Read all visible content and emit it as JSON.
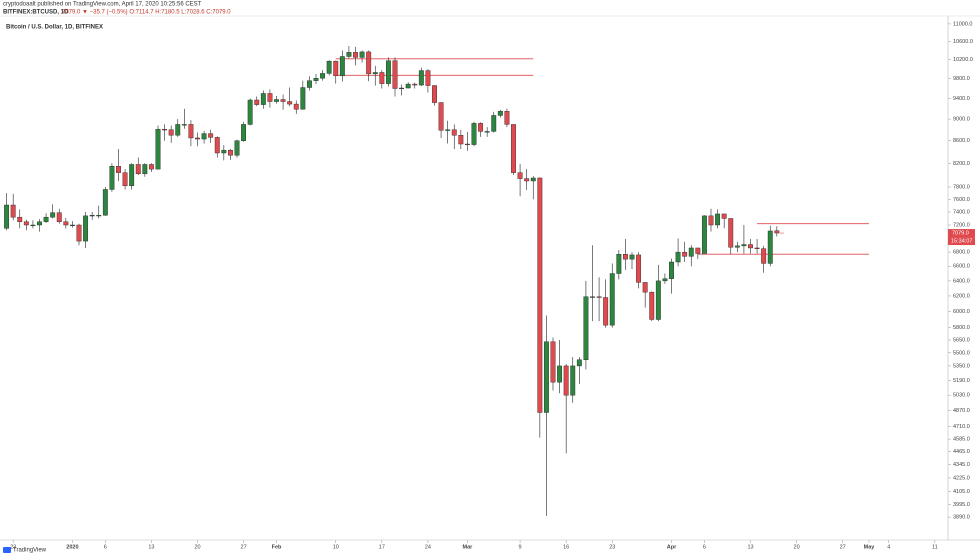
{
  "header": {
    "published": "cryptodoaalt published on TradingView.com, April 17, 2020 10:25:56 CEST",
    "symbol": "BITFINEX:BTCUSD, 1D",
    "quote": "7079.0 ▼ −35.7 (−0.5%) O:7114.7 H:7180.5 L:7028.6 C:7079.0"
  },
  "footer": {
    "brand": "TradingView"
  },
  "chart_data": {
    "type": "candlestick",
    "title": "Bitcoin / U.S. Dollar, 1D, BITFINEX",
    "x": [
      "2019-12-22",
      "2019-12-23",
      "2019-12-24",
      "2019-12-25",
      "2019-12-26",
      "2019-12-27",
      "2019-12-28",
      "2019-12-29",
      "2019-12-30",
      "2019-12-31",
      "2020-01-01",
      "2020-01-02",
      "2020-01-03",
      "2020-01-04",
      "2020-01-05",
      "2020-01-06",
      "2020-01-07",
      "2020-01-08",
      "2020-01-09",
      "2020-01-10",
      "2020-01-11",
      "2020-01-12",
      "2020-01-13",
      "2020-01-14",
      "2020-01-15",
      "2020-01-16",
      "2020-01-17",
      "2020-01-18",
      "2020-01-19",
      "2020-01-20",
      "2020-01-21",
      "2020-01-22",
      "2020-01-23",
      "2020-01-24",
      "2020-01-25",
      "2020-01-26",
      "2020-01-27",
      "2020-01-28",
      "2020-01-29",
      "2020-01-30",
      "2020-01-31",
      "2020-02-01",
      "2020-02-02",
      "2020-02-03",
      "2020-02-04",
      "2020-02-05",
      "2020-02-06",
      "2020-02-07",
      "2020-02-08",
      "2020-02-09",
      "2020-02-10",
      "2020-02-11",
      "2020-02-12",
      "2020-02-13",
      "2020-02-14",
      "2020-02-15",
      "2020-02-16",
      "2020-02-17",
      "2020-02-18",
      "2020-02-19",
      "2020-02-20",
      "2020-02-21",
      "2020-02-22",
      "2020-02-23",
      "2020-02-24",
      "2020-02-25",
      "2020-02-26",
      "2020-02-27",
      "2020-02-28",
      "2020-02-29",
      "2020-03-01",
      "2020-03-02",
      "2020-03-03",
      "2020-03-04",
      "2020-03-05",
      "2020-03-06",
      "2020-03-07",
      "2020-03-08",
      "2020-03-09",
      "2020-03-10",
      "2020-03-11",
      "2020-03-12",
      "2020-03-13",
      "2020-03-14",
      "2020-03-15",
      "2020-03-16",
      "2020-03-17",
      "2020-03-18",
      "2020-03-19",
      "2020-03-20",
      "2020-03-21",
      "2020-03-22",
      "2020-03-23",
      "2020-03-24",
      "2020-03-25",
      "2020-03-26",
      "2020-03-27",
      "2020-03-28",
      "2020-03-29",
      "2020-03-30",
      "2020-03-31",
      "2020-04-01",
      "2020-04-02",
      "2020-04-03",
      "2020-04-04",
      "2020-04-05",
      "2020-04-06",
      "2020-04-07",
      "2020-04-08",
      "2020-04-09",
      "2020-04-10",
      "2020-04-11",
      "2020-04-12",
      "2020-04-13",
      "2020-04-14",
      "2020-04-15",
      "2020-04-16",
      "2020-04-17"
    ],
    "open": [
      7150,
      7510,
      7320,
      7250,
      7200,
      7200,
      7250,
      7320,
      7390,
      7250,
      7200,
      7200,
      6960,
      7340,
      7350,
      7350,
      7760,
      8150,
      8040,
      7820,
      8180,
      8020,
      8180,
      8100,
      8810,
      8800,
      8700,
      8900,
      8900,
      8650,
      8630,
      8730,
      8660,
      8380,
      8430,
      8340,
      8600,
      8900,
      9370,
      9280,
      9500,
      9340,
      9380,
      9340,
      9290,
      9190,
      9620,
      9760,
      9810,
      9910,
      10170,
      9860,
      10270,
      10360,
      10250,
      10370,
      9900,
      9930,
      9700,
      10180,
      9600,
      9610,
      9690,
      9670,
      9970,
      9660,
      9320,
      8790,
      8800,
      8700,
      8540,
      8530,
      8920,
      8770,
      8770,
      9070,
      9150,
      8900,
      8040,
      7940,
      7900,
      7950,
      4850,
      5630,
      5170,
      5350,
      5030,
      5350,
      5420,
      6190,
      6190,
      6180,
      5830,
      6500,
      6770,
      6700,
      6760,
      6380,
      6250,
      5900,
      6400,
      6430,
      6660,
      6800,
      6740,
      6860,
      6780,
      7340,
      7200,
      7370,
      7300,
      6870,
      6890,
      6910,
      6860,
      6850,
      6640,
      7114.7
    ],
    "high": [
      7700,
      7690,
      7440,
      7280,
      7270,
      7290,
      7380,
      7520,
      7450,
      7310,
      7260,
      7220,
      7400,
      7400,
      7500,
      7800,
      8200,
      8450,
      8100,
      8200,
      8300,
      8200,
      8200,
      8880,
      8900,
      8880,
      9000,
      9200,
      8980,
      8750,
      8780,
      8800,
      8680,
      8520,
      8450,
      8620,
      8950,
      9400,
      9440,
      9560,
      9580,
      9450,
      9480,
      9620,
      9360,
      9760,
      9850,
      9900,
      9980,
      10190,
      10180,
      10400,
      10500,
      10480,
      10400,
      10400,
      10070,
      9980,
      10250,
      10250,
      9680,
      9730,
      9720,
      10030,
      10000,
      9670,
      9330,
      8970,
      8900,
      8800,
      8760,
      8950,
      8940,
      8850,
      9140,
      9180,
      9200,
      8900,
      8190,
      8100,
      7980,
      7960,
      5950,
      5680,
      5650,
      5370,
      5450,
      5450,
      6400,
      6900,
      6450,
      6420,
      6640,
      6830,
      6990,
      6800,
      6800,
      6380,
      6260,
      6620,
      6500,
      6710,
      7000,
      6950,
      6900,
      6860,
      7350,
      7450,
      7440,
      7370,
      7300,
      6950,
      7200,
      6990,
      6990,
      6890,
      7190,
      7180.5
    ],
    "low": [
      7120,
      7270,
      7150,
      7120,
      7150,
      7100,
      7230,
      7300,
      7220,
      7150,
      7160,
      6900,
      6860,
      7280,
      7300,
      7340,
      7720,
      7900,
      7760,
      7760,
      8000,
      7970,
      8050,
      8100,
      8600,
      8560,
      8670,
      8820,
      8500,
      8500,
      8550,
      8560,
      8300,
      8250,
      8260,
      8300,
      8580,
      8880,
      9250,
      9200,
      9220,
      9300,
      9180,
      9250,
      9100,
      9180,
      9560,
      9690,
      9760,
      9870,
      9700,
      9740,
      10230,
      10080,
      10140,
      9750,
      9660,
      9600,
      9640,
      9440,
      9460,
      9600,
      9600,
      9650,
      9520,
      9260,
      8650,
      8550,
      8450,
      8450,
      8420,
      8500,
      8670,
      8670,
      8750,
      9030,
      8850,
      8000,
      7650,
      7750,
      7600,
      4600,
      3900,
      5080,
      5050,
      4450,
      4950,
      5150,
      5310,
      5880,
      5880,
      5800,
      5800,
      6420,
      6550,
      6560,
      6300,
      6050,
      5880,
      5880,
      6360,
      6230,
      6600,
      6660,
      6600,
      6700,
      6780,
      7100,
      7150,
      7150,
      6770,
      6800,
      6780,
      6780,
      6780,
      6510,
      6600,
      7028.6
    ],
    "close": [
      7510,
      7320,
      7250,
      7200,
      7200,
      7250,
      7320,
      7390,
      7250,
      7200,
      7200,
      6960,
      7340,
      7350,
      7350,
      7760,
      8150,
      8040,
      7820,
      8180,
      8020,
      8180,
      8100,
      8810,
      8800,
      8700,
      8900,
      8900,
      8650,
      8630,
      8730,
      8660,
      8380,
      8430,
      8340,
      8600,
      8900,
      9370,
      9280,
      9500,
      9340,
      9380,
      9340,
      9290,
      9190,
      9620,
      9760,
      9810,
      9910,
      10170,
      9860,
      10270,
      10360,
      10250,
      10370,
      9900,
      9930,
      9700,
      10180,
      9600,
      9610,
      9690,
      9670,
      9970,
      9660,
      9320,
      8790,
      8800,
      8700,
      8540,
      8530,
      8920,
      8770,
      8770,
      9070,
      9150,
      8900,
      8040,
      7940,
      7900,
      7950,
      4850,
      5630,
      5170,
      5350,
      5030,
      5350,
      5420,
      6190,
      6190,
      6180,
      5830,
      6500,
      6770,
      6700,
      6760,
      6380,
      6250,
      5900,
      6400,
      6430,
      6660,
      6800,
      6740,
      6860,
      6780,
      7340,
      7200,
      7370,
      7300,
      6870,
      6890,
      6910,
      6860,
      6850,
      6640,
      7110,
      7079
    ],
    "colors": {
      "up": "#2e8540",
      "down": "#e04a4f"
    },
    "log_scale": true,
    "xlim": [
      "2019-12-21",
      "2020-05-13"
    ],
    "ylim": [
      3707,
      11185
    ],
    "xticks": [
      {
        "value": "2019-12-23",
        "label": "23"
      },
      {
        "value": "2020-01-01",
        "label": "2020"
      },
      {
        "value": "2020-01-06",
        "label": "6"
      },
      {
        "value": "2020-01-13",
        "label": "13"
      },
      {
        "value": "2020-01-20",
        "label": "20"
      },
      {
        "value": "2020-01-27",
        "label": "27"
      },
      {
        "value": "2020-02-01",
        "label": "Feb"
      },
      {
        "value": "2020-02-10",
        "label": "10"
      },
      {
        "value": "2020-02-17",
        "label": "17"
      },
      {
        "value": "2020-02-24",
        "label": "24"
      },
      {
        "value": "2020-03-01",
        "label": "Mar"
      },
      {
        "value": "2020-03-09",
        "label": "9"
      },
      {
        "value": "2020-03-16",
        "label": "16"
      },
      {
        "value": "2020-03-23",
        "label": "23"
      },
      {
        "value": "2020-04-01",
        "label": "Apr"
      },
      {
        "value": "2020-04-06",
        "label": "6"
      },
      {
        "value": "2020-04-13",
        "label": "13"
      },
      {
        "value": "2020-04-20",
        "label": "20"
      },
      {
        "value": "2020-04-27",
        "label": "27"
      },
      {
        "value": "2020-05-01",
        "label": "May"
      },
      {
        "value": "2020-05-04",
        "label": "4"
      },
      {
        "value": "2020-05-11",
        "label": "11"
      }
    ],
    "yticks": [
      {
        "value": 11000,
        "label": "11000.0"
      },
      {
        "value": 10600,
        "label": "10600.0"
      },
      {
        "value": 10200,
        "label": "10200.0"
      },
      {
        "value": 9800,
        "label": "9800.0"
      },
      {
        "value": 9400,
        "label": "9400.0"
      },
      {
        "value": 9000,
        "label": "9000.0"
      },
      {
        "value": 8600,
        "label": "8600.0"
      },
      {
        "value": 8200,
        "label": "8200.0"
      },
      {
        "value": 7800,
        "label": "7800.0"
      },
      {
        "value": 7600,
        "label": "7600.0"
      },
      {
        "value": 7400,
        "label": "7400.0"
      },
      {
        "value": 7200,
        "label": "7200.0"
      },
      {
        "value": 6800,
        "label": "6800.0"
      },
      {
        "value": 6600,
        "label": "6600.0"
      },
      {
        "value": 6400,
        "label": "6400.0"
      },
      {
        "value": 6200,
        "label": "6200.0"
      },
      {
        "value": 6000,
        "label": "6000.0"
      },
      {
        "value": 5800,
        "label": "5800.0"
      },
      {
        "value": 5650,
        "label": "5650.0"
      },
      {
        "value": 5500,
        "label": "5500.0"
      },
      {
        "value": 5350,
        "label": "5350.0"
      },
      {
        "value": 5190,
        "label": "5190.0"
      },
      {
        "value": 5030,
        "label": "5030.0"
      },
      {
        "value": 4870,
        "label": "4870.0"
      },
      {
        "value": 4710,
        "label": "4710.0"
      },
      {
        "value": 4585,
        "label": "4585.0"
      },
      {
        "value": 4465,
        "label": "4465.0"
      },
      {
        "value": 4345,
        "label": "4345.0"
      },
      {
        "value": 4225,
        "label": "4225.0"
      },
      {
        "value": 4105,
        "label": "4105.0"
      },
      {
        "value": 3995,
        "label": "3995.0"
      },
      {
        "value": 3890,
        "label": "3890.0"
      }
    ],
    "hline_color": "#e04a4f",
    "hlines": [
      {
        "value": 10220,
        "from": "2020-02-10",
        "to": "2020-03-11"
      },
      {
        "value": 9870,
        "from": "2020-02-10",
        "to": "2020-03-11"
      },
      {
        "value": 7220,
        "from": "2020-04-14",
        "to": "2020-05-01"
      },
      {
        "value": 6770,
        "from": "2020-04-05",
        "to": "2020-05-01"
      }
    ],
    "last_price": {
      "value": 7079,
      "label": "7079.0",
      "countdown": "15:34:07"
    }
  }
}
